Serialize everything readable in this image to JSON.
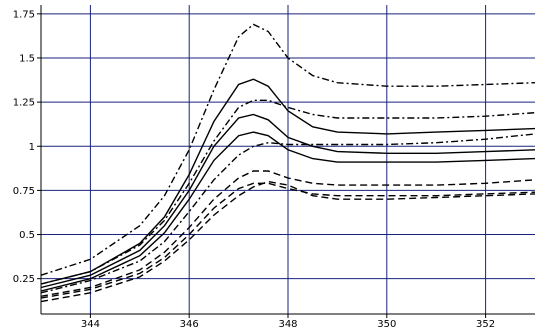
{
  "chart_data": {
    "type": "line",
    "title": "",
    "xlabel": "",
    "ylabel": "",
    "xlim": [
      343,
      353
    ],
    "ylim": [
      0.05,
      1.8
    ],
    "x_ticks": [
      344,
      346,
      348,
      350,
      352
    ],
    "x_tick_labels": [
      "344",
      "346",
      "348",
      "350",
      "352"
    ],
    "y_ticks": [
      0.25,
      0.5,
      0.75,
      1,
      1.25,
      1.5,
      1.75
    ],
    "y_tick_labels": [
      "0.25",
      "0.5",
      "0.75",
      "1",
      "1.25",
      "1.5",
      "1.75"
    ],
    "grid": true,
    "grid_color": "#1a237e",
    "x": [
      343,
      344,
      345,
      345.5,
      346,
      346.5,
      347,
      347.3,
      347.6,
      348,
      348.5,
      349,
      350,
      351,
      352,
      353
    ],
    "series": [
      {
        "style": "dashdot",
        "values": [
          0.27,
          0.36,
          0.55,
          0.72,
          0.98,
          1.32,
          1.62,
          1.69,
          1.65,
          1.5,
          1.4,
          1.36,
          1.34,
          1.34,
          1.35,
          1.36
        ]
      },
      {
        "style": "dashdot",
        "values": [
          0.22,
          0.29,
          0.44,
          0.58,
          0.79,
          1.03,
          1.22,
          1.26,
          1.26,
          1.22,
          1.18,
          1.16,
          1.16,
          1.16,
          1.17,
          1.19
        ]
      },
      {
        "style": "solid",
        "values": [
          0.22,
          0.29,
          0.45,
          0.6,
          0.84,
          1.14,
          1.35,
          1.38,
          1.34,
          1.2,
          1.11,
          1.08,
          1.07,
          1.08,
          1.09,
          1.1
        ]
      },
      {
        "style": "solid",
        "values": [
          0.2,
          0.27,
          0.41,
          0.55,
          0.75,
          1.0,
          1.16,
          1.18,
          1.15,
          1.05,
          1.0,
          0.97,
          0.96,
          0.96,
          0.97,
          0.98
        ]
      },
      {
        "style": "solid",
        "values": [
          0.18,
          0.25,
          0.38,
          0.51,
          0.7,
          0.92,
          1.06,
          1.08,
          1.06,
          0.98,
          0.93,
          0.91,
          0.91,
          0.91,
          0.92,
          0.93
        ]
      },
      {
        "style": "dashdot",
        "values": [
          0.17,
          0.24,
          0.35,
          0.46,
          0.63,
          0.81,
          0.95,
          1.0,
          1.02,
          1.01,
          1.01,
          1.01,
          1.01,
          1.02,
          1.04,
          1.07
        ]
      },
      {
        "style": "dashed",
        "values": [
          0.15,
          0.2,
          0.3,
          0.4,
          0.54,
          0.7,
          0.82,
          0.86,
          0.86,
          0.82,
          0.79,
          0.78,
          0.78,
          0.78,
          0.79,
          0.81
        ]
      },
      {
        "style": "dashed",
        "values": [
          0.14,
          0.19,
          0.28,
          0.37,
          0.5,
          0.65,
          0.76,
          0.79,
          0.79,
          0.76,
          0.73,
          0.72,
          0.72,
          0.72,
          0.73,
          0.74
        ]
      },
      {
        "style": "dashed",
        "values": [
          0.12,
          0.17,
          0.26,
          0.35,
          0.47,
          0.61,
          0.72,
          0.77,
          0.8,
          0.78,
          0.72,
          0.7,
          0.7,
          0.71,
          0.72,
          0.73
        ]
      }
    ]
  }
}
